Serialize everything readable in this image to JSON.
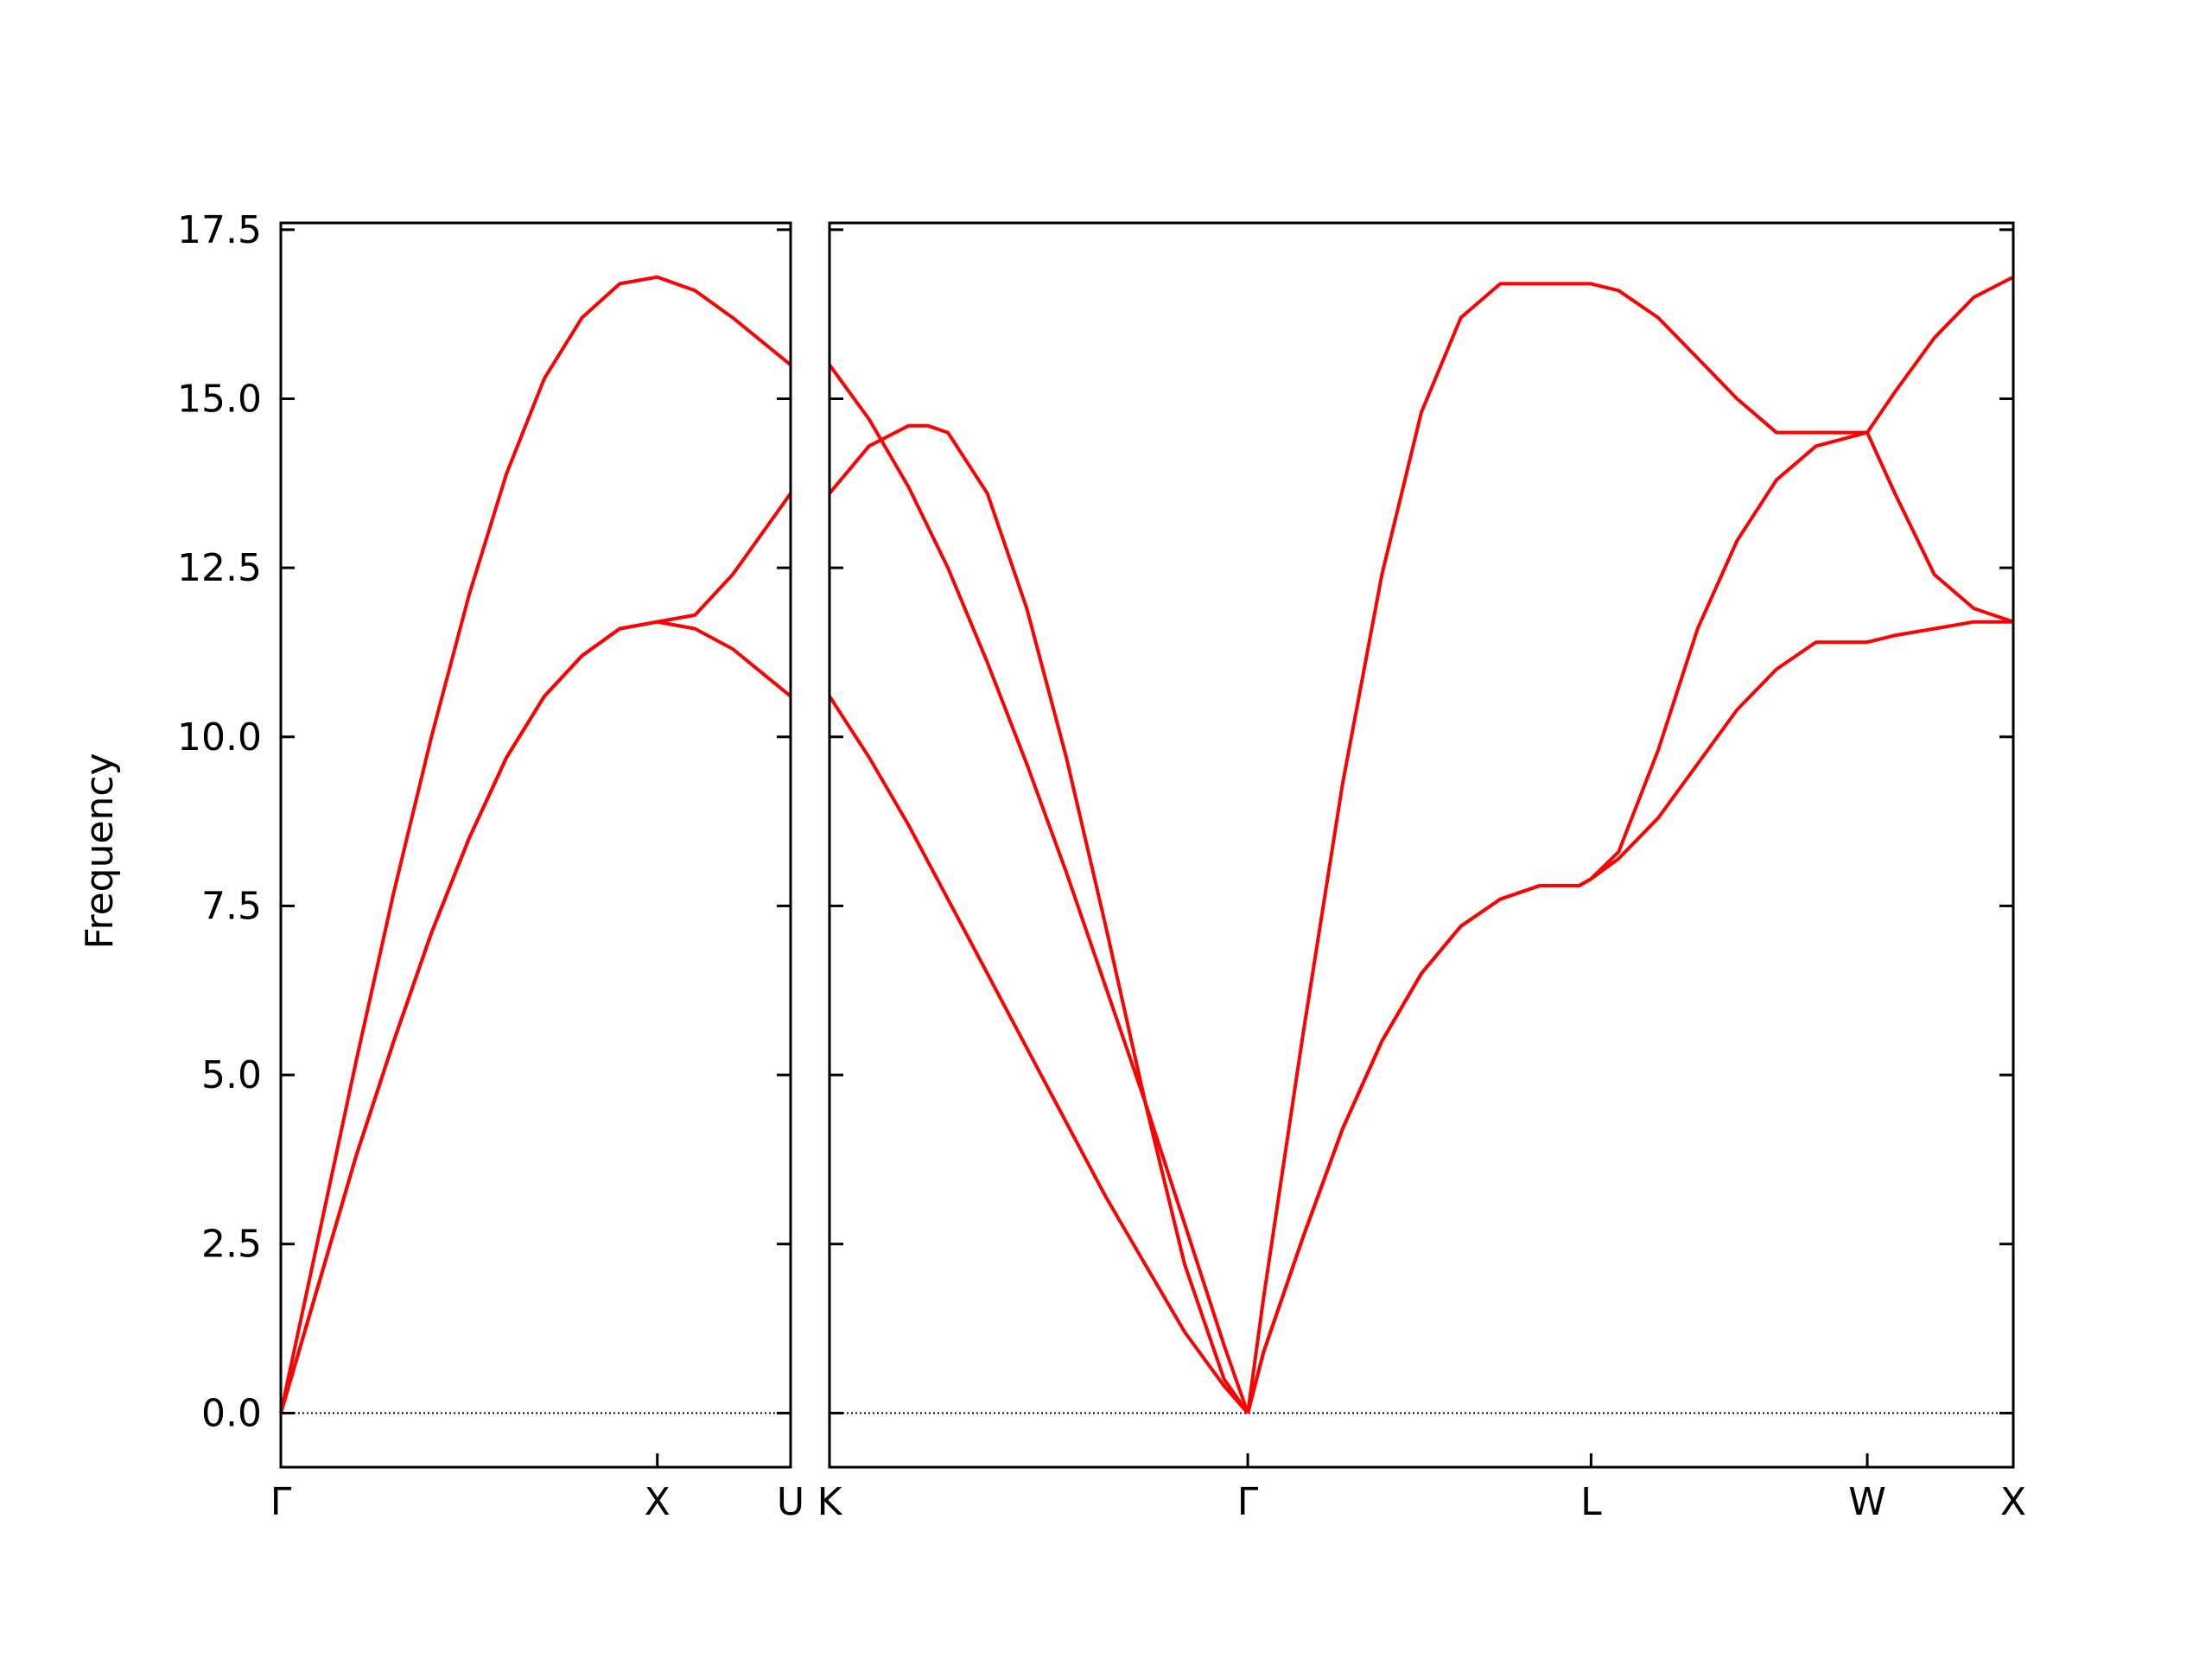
{
  "chart_data": {
    "type": "line",
    "ylabel": "Frequency",
    "ylim": [
      -0.8,
      17.6
    ],
    "yticks": [
      0.0,
      2.5,
      5.0,
      7.5,
      10.0,
      12.5,
      15.0,
      17.5
    ],
    "ytick_labels": [
      "0.0",
      "2.5",
      "5.0",
      "7.5",
      "10.0",
      "12.5",
      "15.0",
      "17.5"
    ],
    "line_color": "#ff0000",
    "zero_line_color": "#00008b",
    "grid": false,
    "panels": [
      {
        "id": "left",
        "x_labels": [
          "Γ",
          "X",
          "U"
        ],
        "xlim": [
          0,
          1.354
        ],
        "x_ticks": [
          0,
          1.0,
          1.354
        ],
        "series": [
          {
            "x": [
              0,
              0.1,
              0.2,
              0.3,
              0.4,
              0.5,
              0.6,
              0.7,
              0.8,
              0.9,
              1.0,
              1.1,
              1.2,
              1.354
            ],
            "y": [
              0,
              2.6,
              5.2,
              7.7,
              10.0,
              12.1,
              13.9,
              15.3,
              16.2,
              16.7,
              16.8,
              16.6,
              16.2,
              15.5
            ]
          },
          {
            "x": [
              0,
              0.1,
              0.2,
              0.3,
              0.4,
              0.5,
              0.6,
              0.7,
              0.8,
              0.9,
              1.0,
              1.1,
              1.2,
              1.354
            ],
            "y": [
              0,
              1.9,
              3.8,
              5.5,
              7.1,
              8.5,
              9.7,
              10.6,
              11.2,
              11.6,
              11.7,
              11.8,
              12.4,
              13.6
            ]
          },
          {
            "x": [
              0,
              0.1,
              0.2,
              0.3,
              0.4,
              0.5,
              0.6,
              0.7,
              0.8,
              0.9,
              1.0,
              1.1,
              1.2,
              1.354
            ],
            "y": [
              0,
              1.9,
              3.8,
              5.5,
              7.1,
              8.5,
              9.7,
              10.6,
              11.2,
              11.6,
              11.7,
              11.6,
              11.3,
              10.6
            ]
          }
        ]
      },
      {
        "id": "right",
        "x_labels": [
          "K",
          "Γ",
          "L",
          "W",
          "X"
        ],
        "xlim": [
          0,
          3.0
        ],
        "x_ticks": [
          0,
          1.06,
          1.93,
          2.63,
          3.0
        ],
        "series": [
          {
            "x": [
              0,
              0.1,
              0.2,
              0.3,
              0.4,
              0.5,
              0.6,
              0.7,
              0.8,
              0.9,
              1.0,
              1.06
            ],
            "y": [
              15.5,
              14.7,
              13.7,
              12.5,
              11.1,
              9.6,
              8.0,
              6.3,
              4.6,
              2.8,
              1.0,
              0
            ]
          },
          {
            "x": [
              0,
              0.1,
              0.2,
              0.25,
              0.3,
              0.4,
              0.5,
              0.6,
              0.7,
              0.8,
              0.9,
              1.0,
              1.06
            ],
            "y": [
              13.6,
              14.3,
              14.6,
              14.6,
              14.5,
              13.6,
              11.9,
              9.7,
              7.2,
              4.6,
              2.2,
              0.5,
              0
            ]
          },
          {
            "x": [
              0,
              0.1,
              0.2,
              0.3,
              0.4,
              0.5,
              0.6,
              0.7,
              0.8,
              0.9,
              1.0,
              1.06
            ],
            "y": [
              10.6,
              9.7,
              8.7,
              7.6,
              6.5,
              5.4,
              4.3,
              3.2,
              2.2,
              1.2,
              0.4,
              0
            ]
          },
          {
            "x": [
              1.06,
              1.1,
              1.2,
              1.3,
              1.4,
              1.5,
              1.6,
              1.7,
              1.8,
              1.9,
              1.93,
              2.0,
              2.1,
              2.2,
              2.3,
              2.4,
              2.5,
              2.63,
              2.7,
              2.8,
              2.9,
              3.0
            ],
            "y": [
              0,
              1.7,
              5.6,
              9.3,
              12.4,
              14.8,
              16.2,
              16.7,
              16.7,
              16.7,
              16.7,
              16.6,
              16.2,
              15.6,
              15.0,
              14.5,
              14.5,
              14.5,
              15.1,
              15.9,
              16.5,
              16.8
            ]
          },
          {
            "x": [
              1.06,
              1.1,
              1.2,
              1.3,
              1.4,
              1.5,
              1.6,
              1.7,
              1.8,
              1.9,
              1.93,
              2.0,
              2.1,
              2.2,
              2.3,
              2.4,
              2.5,
              2.63,
              2.7,
              2.8,
              2.9,
              3.0
            ],
            "y": [
              0,
              0.9,
              2.6,
              4.2,
              5.5,
              6.5,
              7.2,
              7.6,
              7.8,
              7.8,
              7.9,
              8.3,
              9.8,
              11.6,
              12.9,
              13.8,
              14.3,
              14.5,
              13.6,
              12.4,
              11.9,
              11.7
            ]
          },
          {
            "x": [
              1.06,
              1.1,
              1.2,
              1.3,
              1.4,
              1.5,
              1.6,
              1.7,
              1.8,
              1.9,
              1.93,
              2.0,
              2.1,
              2.2,
              2.3,
              2.4,
              2.5,
              2.63,
              2.7,
              2.8,
              2.9,
              3.0
            ],
            "y": [
              0,
              0.9,
              2.6,
              4.2,
              5.5,
              6.5,
              7.2,
              7.6,
              7.8,
              7.8,
              7.9,
              8.2,
              8.8,
              9.6,
              10.4,
              11.0,
              11.4,
              11.4,
              11.5,
              11.6,
              11.7,
              11.7
            ]
          }
        ]
      }
    ]
  }
}
